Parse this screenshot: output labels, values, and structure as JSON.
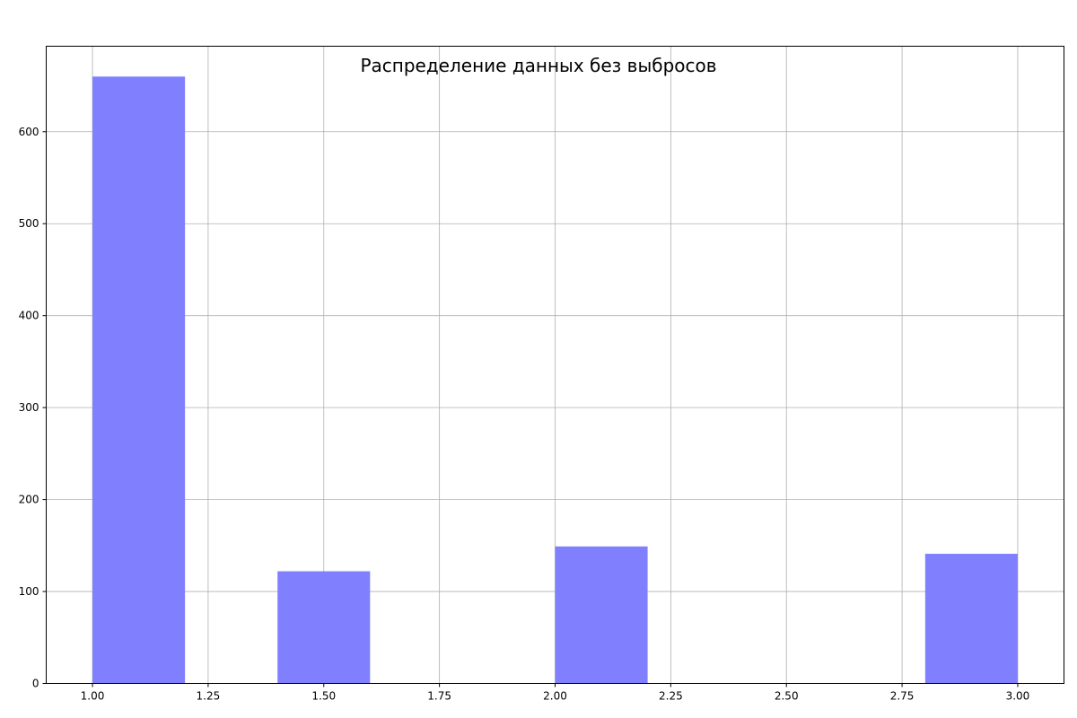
{
  "chart_data": {
    "type": "bar",
    "title": "Распределение данных без выбросов",
    "xlabel": "",
    "ylabel": "",
    "xlim": [
      0.9,
      3.1
    ],
    "ylim": [
      0,
      693
    ],
    "grid": true,
    "bar_color": "#8080ff",
    "grid_color": "#b0b0b0",
    "bins": [
      {
        "x0": 1.0,
        "x1": 1.2,
        "value": 660
      },
      {
        "x0": 1.4,
        "x1": 1.6,
        "value": 122
      },
      {
        "x0": 2.0,
        "x1": 2.2,
        "value": 149
      },
      {
        "x0": 2.8,
        "x1": 3.0,
        "value": 141
      }
    ],
    "x_ticks": [
      {
        "value": 1.0,
        "label": "1.00"
      },
      {
        "value": 1.25,
        "label": "1.25"
      },
      {
        "value": 1.5,
        "label": "1.50"
      },
      {
        "value": 1.75,
        "label": "1.75"
      },
      {
        "value": 2.0,
        "label": "2.00"
      },
      {
        "value": 2.25,
        "label": "2.25"
      },
      {
        "value": 2.5,
        "label": "2.50"
      },
      {
        "value": 2.75,
        "label": "2.75"
      },
      {
        "value": 3.0,
        "label": "3.00"
      }
    ],
    "y_ticks": [
      {
        "value": 0,
        "label": "0"
      },
      {
        "value": 100,
        "label": "100"
      },
      {
        "value": 200,
        "label": "200"
      },
      {
        "value": 300,
        "label": "300"
      },
      {
        "value": 400,
        "label": "400"
      },
      {
        "value": 500,
        "label": "500"
      },
      {
        "value": 600,
        "label": "600"
      }
    ]
  }
}
